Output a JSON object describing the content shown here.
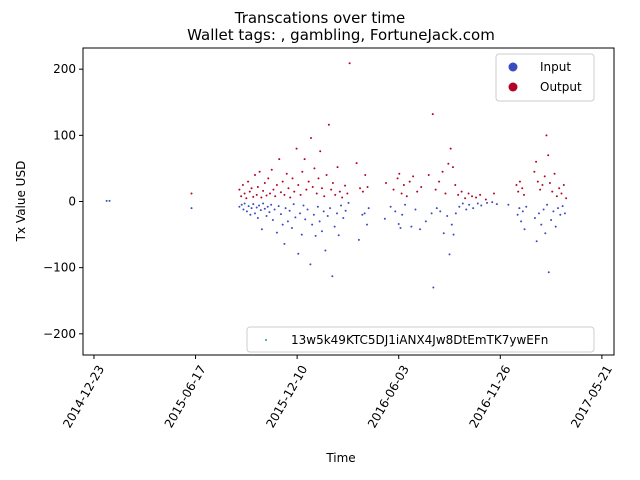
{
  "chart_data": {
    "type": "scatter",
    "title": "Transcations over time",
    "subtitle": "Wallet tags: , gambling, FortuneJack.com",
    "xlabel": "Time",
    "ylabel": "Tx Value USD",
    "xlim": [
      "2014-12-04",
      "2017-06-11"
    ],
    "ylim": [
      -232,
      232
    ],
    "y_ticks": [
      -200,
      -100,
      0,
      100,
      200
    ],
    "x_ticks": [
      "2014-12-23",
      "2015-06-17",
      "2015-12-10",
      "2016-06-03",
      "2016-11-26",
      "2017-05-21"
    ],
    "x_tick_rotation": 60,
    "grid": false,
    "legend_top": {
      "placement": "top-right",
      "entries": [
        {
          "name": "Input",
          "color": "#3b4cc0"
        },
        {
          "name": "Output",
          "color": "#b40426"
        }
      ]
    },
    "legend_bottom": {
      "placement": "bottom-right",
      "entries": [
        {
          "name": "13w5k49KTC5DJ1iANX4Jw8DtEmTK7ywEFn",
          "color": "#1f9e89"
        }
      ]
    },
    "series": [
      {
        "name": "Input",
        "color": "#3b4cc0",
        "points": [
          [
            "2015-01-14",
            1
          ],
          [
            "2015-01-19",
            1
          ],
          [
            "2015-06-10",
            -10
          ],
          [
            "2015-09-01",
            -8
          ],
          [
            "2015-09-05",
            -5
          ],
          [
            "2015-09-08",
            -12
          ],
          [
            "2015-09-10",
            -3
          ],
          [
            "2015-09-14",
            -15
          ],
          [
            "2015-09-17",
            -7
          ],
          [
            "2015-09-20",
            -20
          ],
          [
            "2015-09-22",
            -10
          ],
          [
            "2015-09-25",
            -4
          ],
          [
            "2015-09-28",
            -18
          ],
          [
            "2015-10-01",
            -9
          ],
          [
            "2015-10-03",
            -25
          ],
          [
            "2015-10-05",
            -6
          ],
          [
            "2015-10-08",
            -13
          ],
          [
            "2015-10-10",
            -42
          ],
          [
            "2015-10-12",
            -3
          ],
          [
            "2015-10-15",
            -11
          ],
          [
            "2015-10-18",
            -22
          ],
          [
            "2015-10-20",
            -8
          ],
          [
            "2015-10-23",
            -16
          ],
          [
            "2015-10-26",
            -5
          ],
          [
            "2015-10-29",
            -28
          ],
          [
            "2015-11-01",
            -12
          ],
          [
            "2015-11-05",
            -47
          ],
          [
            "2015-11-08",
            -7
          ],
          [
            "2015-11-12",
            -19
          ],
          [
            "2015-11-15",
            -35
          ],
          [
            "2015-11-18",
            -64
          ],
          [
            "2015-11-20",
            -10
          ],
          [
            "2015-11-24",
            -30
          ],
          [
            "2015-11-27",
            -14
          ],
          [
            "2015-12-01",
            -40
          ],
          [
            "2015-12-04",
            -4
          ],
          [
            "2015-12-07",
            -24
          ],
          [
            "2015-12-12",
            -79
          ],
          [
            "2015-12-15",
            -18
          ],
          [
            "2015-12-18",
            -50
          ],
          [
            "2015-12-21",
            -6
          ],
          [
            "2015-12-24",
            -27
          ],
          [
            "2015-12-28",
            -12
          ],
          [
            "2016-01-02",
            -95
          ],
          [
            "2016-01-05",
            -35
          ],
          [
            "2016-01-08",
            -20
          ],
          [
            "2016-01-11",
            -52
          ],
          [
            "2016-01-15",
            -8
          ],
          [
            "2016-01-18",
            -30
          ],
          [
            "2016-01-22",
            -45
          ],
          [
            "2016-01-25",
            -15
          ],
          [
            "2016-01-28",
            -74
          ],
          [
            "2016-02-01",
            -22
          ],
          [
            "2016-02-05",
            -10
          ],
          [
            "2016-02-09",
            -113
          ],
          [
            "2016-02-13",
            -38
          ],
          [
            "2016-02-17",
            -18
          ],
          [
            "2016-02-20",
            -51
          ],
          [
            "2016-02-24",
            -6
          ],
          [
            "2016-02-28",
            -25
          ],
          [
            "2016-03-03",
            -14
          ],
          [
            "2016-03-08",
            -2
          ],
          [
            "2016-03-26",
            -58
          ],
          [
            "2016-04-01",
            -20
          ],
          [
            "2016-04-05",
            -18
          ],
          [
            "2016-04-09",
            -35
          ],
          [
            "2016-04-12",
            -10
          ],
          [
            "2016-05-10",
            -26
          ],
          [
            "2016-05-20",
            -8
          ],
          [
            "2016-05-28",
            -15
          ],
          [
            "2016-06-03",
            -34
          ],
          [
            "2016-06-06",
            -40
          ],
          [
            "2016-06-09",
            -20
          ],
          [
            "2016-06-14",
            -5
          ],
          [
            "2016-06-25",
            -38
          ],
          [
            "2016-07-02",
            -12
          ],
          [
            "2016-07-10",
            -42
          ],
          [
            "2016-07-20",
            -30
          ],
          [
            "2016-07-30",
            -18
          ],
          [
            "2016-08-02",
            -130
          ],
          [
            "2016-08-08",
            -10
          ],
          [
            "2016-08-14",
            -15
          ],
          [
            "2016-08-20",
            -48
          ],
          [
            "2016-08-26",
            -22
          ],
          [
            "2016-08-30",
            -80
          ],
          [
            "2016-09-03",
            -35
          ],
          [
            "2016-09-06",
            -50
          ],
          [
            "2016-09-10",
            -18
          ],
          [
            "2016-09-16",
            -8
          ],
          [
            "2016-09-22",
            -3
          ],
          [
            "2016-09-28",
            -12
          ],
          [
            "2016-10-03",
            -5
          ],
          [
            "2016-10-10",
            -10
          ],
          [
            "2016-10-18",
            -3
          ],
          [
            "2016-10-24",
            -6
          ],
          [
            "2016-11-03",
            -2
          ],
          [
            "2016-11-12",
            -1
          ],
          [
            "2016-11-20",
            -4
          ],
          [
            "2016-12-10",
            -5
          ],
          [
            "2016-12-26",
            -20
          ],
          [
            "2016-12-29",
            -10
          ],
          [
            "2017-01-01",
            -30
          ],
          [
            "2017-01-04",
            -15
          ],
          [
            "2017-01-07",
            -42
          ],
          [
            "2017-01-10",
            -8
          ],
          [
            "2017-01-25",
            -25
          ],
          [
            "2017-01-28",
            -60
          ],
          [
            "2017-02-01",
            -18
          ],
          [
            "2017-02-05",
            -35
          ],
          [
            "2017-02-09",
            -12
          ],
          [
            "2017-02-12",
            -48
          ],
          [
            "2017-02-15",
            -5
          ],
          [
            "2017-02-18",
            -107
          ],
          [
            "2017-02-22",
            -28
          ],
          [
            "2017-02-26",
            -15
          ],
          [
            "2017-03-02",
            -38
          ],
          [
            "2017-03-06",
            -10
          ],
          [
            "2017-03-10",
            -20
          ],
          [
            "2017-03-14",
            -7
          ],
          [
            "2017-03-18",
            -18
          ]
        ]
      },
      {
        "name": "Output",
        "color": "#b40426",
        "points": [
          [
            "2015-06-10",
            12
          ],
          [
            "2015-09-01",
            18
          ],
          [
            "2015-09-04",
            8
          ],
          [
            "2015-09-07",
            25
          ],
          [
            "2015-09-10",
            12
          ],
          [
            "2015-09-13",
            5
          ],
          [
            "2015-09-16",
            30
          ],
          [
            "2015-09-19",
            15
          ],
          [
            "2015-09-22",
            20
          ],
          [
            "2015-09-25",
            7
          ],
          [
            "2015-09-28",
            40
          ],
          [
            "2015-10-01",
            10
          ],
          [
            "2015-10-03",
            22
          ],
          [
            "2015-10-06",
            45
          ],
          [
            "2015-10-09",
            6
          ],
          [
            "2015-10-12",
            16
          ],
          [
            "2015-10-15",
            28
          ],
          [
            "2015-10-18",
            9
          ],
          [
            "2015-10-21",
            35
          ],
          [
            "2015-10-24",
            12
          ],
          [
            "2015-10-27",
            48
          ],
          [
            "2015-10-30",
            18
          ],
          [
            "2015-11-02",
            8
          ],
          [
            "2015-11-05",
            25
          ],
          [
            "2015-11-09",
            64
          ],
          [
            "2015-11-12",
            14
          ],
          [
            "2015-11-15",
            30
          ],
          [
            "2015-11-18",
            10
          ],
          [
            "2015-11-22",
            42
          ],
          [
            "2015-11-25",
            20
          ],
          [
            "2015-11-28",
            6
          ],
          [
            "2015-12-02",
            35
          ],
          [
            "2015-12-05",
            15
          ],
          [
            "2015-12-09",
            80
          ],
          [
            "2015-12-12",
            25
          ],
          [
            "2015-12-16",
            10
          ],
          [
            "2015-12-19",
            45
          ],
          [
            "2015-12-23",
            64
          ],
          [
            "2015-12-26",
            18
          ],
          [
            "2015-12-30",
            30
          ],
          [
            "2016-01-03",
            96
          ],
          [
            "2016-01-06",
            22
          ],
          [
            "2016-01-09",
            50
          ],
          [
            "2016-01-13",
            12
          ],
          [
            "2016-01-16",
            35
          ],
          [
            "2016-01-19",
            76
          ],
          [
            "2016-01-22",
            20
          ],
          [
            "2016-01-26",
            8
          ],
          [
            "2016-01-30",
            40
          ],
          [
            "2016-02-03",
            116
          ],
          [
            "2016-02-07",
            18
          ],
          [
            "2016-02-10",
            28
          ],
          [
            "2016-02-14",
            10
          ],
          [
            "2016-02-18",
            52
          ],
          [
            "2016-02-22",
            15
          ],
          [
            "2016-02-26",
            6
          ],
          [
            "2016-03-02",
            24
          ],
          [
            "2016-03-06",
            12
          ],
          [
            "2016-03-10",
            209
          ],
          [
            "2016-03-22",
            58
          ],
          [
            "2016-03-28",
            20
          ],
          [
            "2016-04-02",
            15
          ],
          [
            "2016-04-06",
            40
          ],
          [
            "2016-04-10",
            22
          ],
          [
            "2016-05-12",
            28
          ],
          [
            "2016-05-25",
            18
          ],
          [
            "2016-06-01",
            35
          ],
          [
            "2016-06-04",
            42
          ],
          [
            "2016-06-08",
            12
          ],
          [
            "2016-06-12",
            25
          ],
          [
            "2016-06-17",
            8
          ],
          [
            "2016-06-22",
            30
          ],
          [
            "2016-06-28",
            38
          ],
          [
            "2016-07-05",
            15
          ],
          [
            "2016-07-12",
            22
          ],
          [
            "2016-07-25",
            40
          ],
          [
            "2016-08-01",
            132
          ],
          [
            "2016-08-06",
            18
          ],
          [
            "2016-08-12",
            30
          ],
          [
            "2016-08-18",
            45
          ],
          [
            "2016-08-23",
            12
          ],
          [
            "2016-08-28",
            57
          ],
          [
            "2016-09-01",
            80
          ],
          [
            "2016-09-05",
            52
          ],
          [
            "2016-09-09",
            25
          ],
          [
            "2016-09-14",
            10
          ],
          [
            "2016-09-20",
            15
          ],
          [
            "2016-09-26",
            5
          ],
          [
            "2016-10-02",
            12
          ],
          [
            "2016-10-08",
            8
          ],
          [
            "2016-10-15",
            6
          ],
          [
            "2016-10-22",
            10
          ],
          [
            "2016-11-01",
            3
          ],
          [
            "2016-11-15",
            12
          ],
          [
            "2016-12-24",
            25
          ],
          [
            "2016-12-27",
            15
          ],
          [
            "2016-12-30",
            30
          ],
          [
            "2017-01-03",
            20
          ],
          [
            "2017-01-06",
            10
          ],
          [
            "2017-01-24",
            45
          ],
          [
            "2017-01-27",
            60
          ],
          [
            "2017-01-30",
            30
          ],
          [
            "2017-02-03",
            18
          ],
          [
            "2017-02-07",
            25
          ],
          [
            "2017-02-11",
            38
          ],
          [
            "2017-02-14",
            100
          ],
          [
            "2017-02-17",
            70
          ],
          [
            "2017-02-20",
            28
          ],
          [
            "2017-02-24",
            15
          ],
          [
            "2017-02-28",
            42
          ],
          [
            "2017-03-04",
            8
          ],
          [
            "2017-03-08",
            20
          ],
          [
            "2017-03-12",
            12
          ],
          [
            "2017-03-16",
            25
          ],
          [
            "2017-03-20",
            5
          ]
        ]
      },
      {
        "name": "13w5k49KTC5DJ1iANX4Jw8DtEmTK7ywEFn",
        "color": "#1f9e89",
        "points": []
      }
    ]
  }
}
